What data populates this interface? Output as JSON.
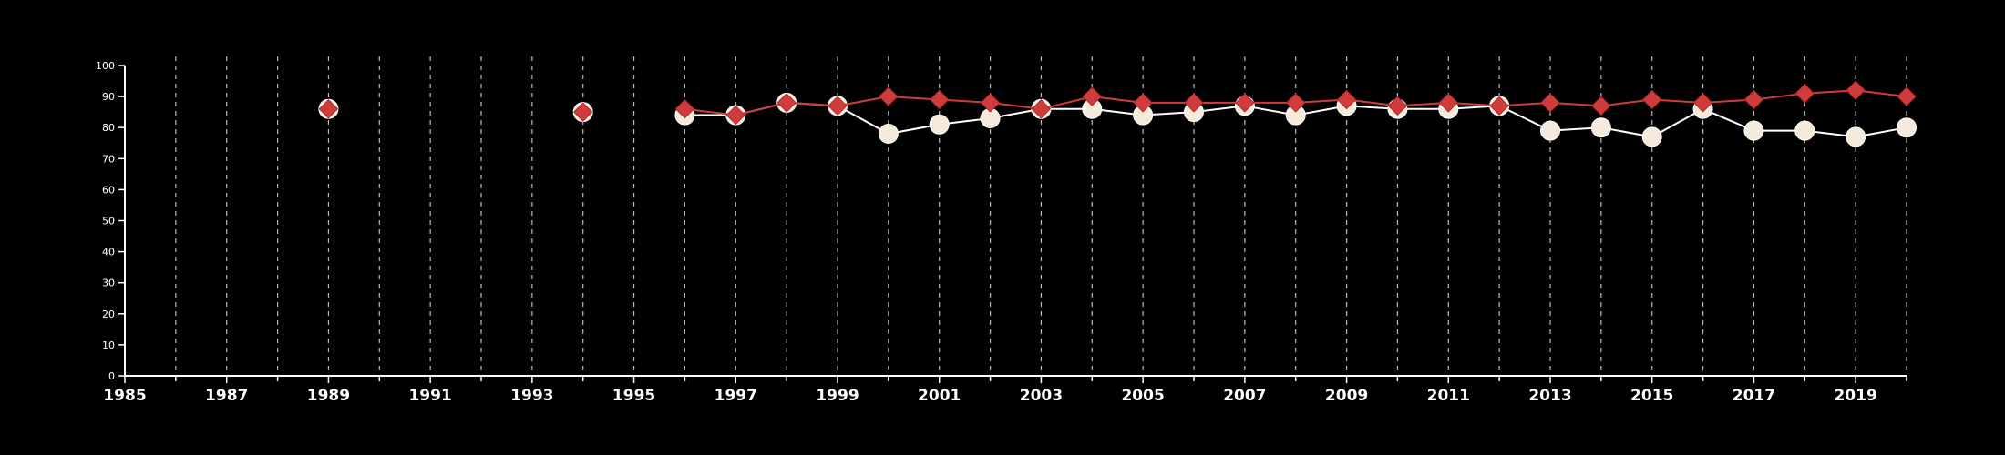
{
  "chart_data": {
    "type": "line",
    "title": "",
    "xlabel": "",
    "ylabel": "",
    "xlim": [
      1985,
      2020
    ],
    "ylim": [
      0,
      100
    ],
    "x_ticks": [
      1985,
      1987,
      1989,
      1991,
      1993,
      1995,
      1997,
      1999,
      2001,
      2003,
      2005,
      2007,
      2009,
      2011,
      2013,
      2015,
      2017,
      2019
    ],
    "x_minor_ticks": [
      1986,
      1988,
      1990,
      1992,
      1994,
      1996,
      1998,
      2000,
      2002,
      2004,
      2006,
      2008,
      2010,
      2012,
      2014,
      2016,
      2018,
      2020
    ],
    "y_ticks": [
      0,
      10,
      20,
      30,
      40,
      50,
      60,
      70,
      80,
      90,
      100
    ],
    "grid": {
      "vertical_dashed_at_years": true,
      "horizontal": false
    },
    "legend": "none",
    "series": [
      {
        "marker": "circle",
        "color": "#f5eadb",
        "line_color": "#ffffff",
        "points": [
          {
            "x": 1989,
            "y": 86
          },
          {
            "x": 1994,
            "y": 85
          },
          {
            "x": 1996,
            "y": 84
          },
          {
            "x": 1997,
            "y": 84
          },
          {
            "x": 1998,
            "y": 88
          },
          {
            "x": 1999,
            "y": 87
          },
          {
            "x": 2000,
            "y": 78
          },
          {
            "x": 2001,
            "y": 81
          },
          {
            "x": 2002,
            "y": 83
          },
          {
            "x": 2003,
            "y": 86
          },
          {
            "x": 2004,
            "y": 86
          },
          {
            "x": 2005,
            "y": 84
          },
          {
            "x": 2006,
            "y": 85
          },
          {
            "x": 2007,
            "y": 87
          },
          {
            "x": 2008,
            "y": 84
          },
          {
            "x": 2009,
            "y": 87
          },
          {
            "x": 2010,
            "y": 86
          },
          {
            "x": 2011,
            "y": 86
          },
          {
            "x": 2012,
            "y": 87
          },
          {
            "x": 2013,
            "y": 79
          },
          {
            "x": 2014,
            "y": 80
          },
          {
            "x": 2015,
            "y": 77
          },
          {
            "x": 2016,
            "y": 86
          },
          {
            "x": 2017,
            "y": 79
          },
          {
            "x": 2018,
            "y": 79
          },
          {
            "x": 2019,
            "y": 77
          },
          {
            "x": 2020,
            "y": 80
          }
        ]
      },
      {
        "marker": "diamond",
        "color": "#d03b3b",
        "line_color": "#d03b3b",
        "points": [
          {
            "x": 1989,
            "y": 86
          },
          {
            "x": 1994,
            "y": 85
          },
          {
            "x": 1996,
            "y": 86
          },
          {
            "x": 1997,
            "y": 84
          },
          {
            "x": 1998,
            "y": 88
          },
          {
            "x": 1999,
            "y": 87
          },
          {
            "x": 2000,
            "y": 90
          },
          {
            "x": 2001,
            "y": 89
          },
          {
            "x": 2002,
            "y": 88
          },
          {
            "x": 2003,
            "y": 86
          },
          {
            "x": 2004,
            "y": 90
          },
          {
            "x": 2005,
            "y": 88
          },
          {
            "x": 2006,
            "y": 88
          },
          {
            "x": 2007,
            "y": 88
          },
          {
            "x": 2008,
            "y": 88
          },
          {
            "x": 2009,
            "y": 89
          },
          {
            "x": 2010,
            "y": 87
          },
          {
            "x": 2011,
            "y": 88
          },
          {
            "x": 2012,
            "y": 87
          },
          {
            "x": 2013,
            "y": 88
          },
          {
            "x": 2014,
            "y": 87
          },
          {
            "x": 2015,
            "y": 89
          },
          {
            "x": 2016,
            "y": 88
          },
          {
            "x": 2017,
            "y": 89
          },
          {
            "x": 2018,
            "y": 91
          },
          {
            "x": 2019,
            "y": 92
          },
          {
            "x": 2020,
            "y": 90
          }
        ]
      }
    ]
  }
}
